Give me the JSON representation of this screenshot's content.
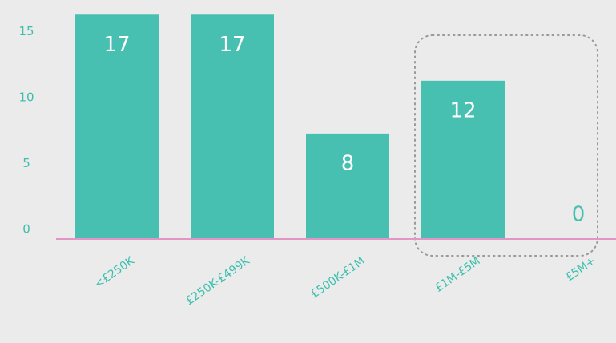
{
  "chart_data": {
    "type": "bar",
    "categories": [
      "<£250K",
      "£250K-£499K",
      "£500K-£1M",
      "£1M-£5M",
      "£5M+"
    ],
    "values": [
      17,
      17,
      8,
      12,
      0
    ],
    "color": "#47c0b1",
    "axis_color": "#e396c6",
    "ylim": [
      0,
      17.5
    ],
    "yticks": [
      0,
      5,
      10,
      15
    ],
    "grid": false
  }
}
